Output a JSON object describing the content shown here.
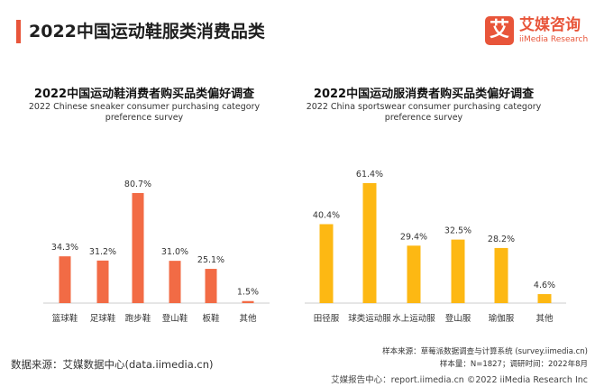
{
  "page": {
    "title": "2022中国运动鞋服类消费品类",
    "logo_mark": "艾",
    "logo_cn": "艾媒咨询",
    "logo_en": "iiMedia Research",
    "brand_color": "#e8553a"
  },
  "chart_data": [
    {
      "type": "bar",
      "title": "2022中国运动鞋消费者购买品类偏好调查",
      "subtitle": "2022 Chinese sneaker consumer purchasing category preference survey",
      "categories": [
        "篮球鞋",
        "足球鞋",
        "跑步鞋",
        "登山鞋",
        "板鞋",
        "其他"
      ],
      "values": [
        34.3,
        31.2,
        80.7,
        31.0,
        25.1,
        1.5
      ],
      "value_labels": [
        "34.3%",
        "31.2%",
        "80.7%",
        "31.0%",
        "25.1%",
        "1.5%"
      ],
      "color": "#f26b45",
      "ylim": [
        0,
        90
      ],
      "grid": false
    },
    {
      "type": "bar",
      "title": "2022中国运动服消费者购买品类偏好调查",
      "subtitle": "2022 China sportswear consumer purchasing category preference survey",
      "categories": [
        "田径服",
        "球类运动服",
        "水上运动服",
        "登山服",
        "瑜伽服",
        "其他"
      ],
      "values": [
        40.4,
        61.4,
        29.4,
        32.5,
        28.2,
        4.6
      ],
      "value_labels": [
        "40.4%",
        "61.4%",
        "29.4%",
        "32.5%",
        "28.2%",
        "4.6%"
      ],
      "color": "#fdb813",
      "ylim": [
        0,
        68
      ],
      "grid": false
    }
  ],
  "source": "数据来源：艾媒数据中心(data.iimedia.cn)",
  "meta": {
    "source_line": "样本来源：草莓派数据调查与计算系统 (survey.iimedia.cn)",
    "sample_line": "样本量：N=1827；调研时间：2022年8月"
  },
  "footer": "艾媒报告中心：report.iimedia.cn  ©2022  iiMedia Research Inc"
}
